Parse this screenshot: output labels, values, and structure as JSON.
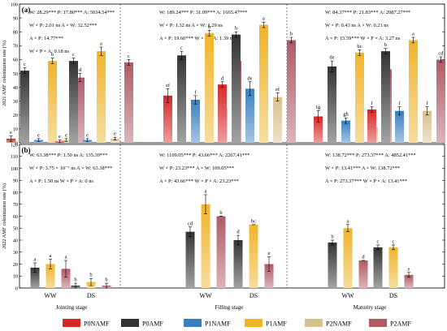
{
  "legend": [
    {
      "label": "P0NAMF",
      "color": "#d62728"
    },
    {
      "label": "P0AMF",
      "color": "#333333"
    },
    {
      "label": "P1NAMF",
      "color": "#3a7fc0"
    },
    {
      "label": "P1AMF",
      "color": "#f0b429"
    },
    {
      "label": "P2NAMF",
      "color": "#d8c18f"
    },
    {
      "label": "P2AMF",
      "color": "#b05a66"
    }
  ],
  "stages": [
    "Jointing stage",
    "Filling stage",
    "Maturity stage"
  ],
  "groups": [
    "WW",
    "DS"
  ],
  "chart_data": [
    {
      "type": "bar",
      "panel_label": "(a)",
      "ylabel": "2021 AMF colonization rate (%)",
      "ylim": [
        0,
        100
      ],
      "yticks": [
        0,
        10,
        20,
        30,
        40,
        50,
        60,
        70,
        80,
        90,
        100
      ],
      "stats": [
        [
          "W: 28.29*** P: 17.80*** A: 5034.54***",
          "W × P: 2.01 ns   A × W: 32.52***",
          "A × P: 14.77***",
          "W × P × A: 0.18 ns"
        ],
        [
          "W: 189.24*** P: 31.09*** A: 1665.47***",
          "W × P: 1.32 ns   A × W: 1.29 ns",
          "A × P: 19.60***   W × P × A: 1.39 ns"
        ],
        [
          "W: 84.37*** P: 21.83*** A: 2087.27***",
          "W × P: 0.43 ns   A × W: 0.21 ns",
          "A × P: 15.59***   W × P × A: 3.27 ns"
        ]
      ],
      "series": [
        {
          "name": "P0NAMF",
          "values": [
            [
              3,
              1
            ],
            [
              34,
              42
            ],
            [
              19,
              24
            ]
          ],
          "errors": [
            [
              2,
              1
            ],
            [
              5,
              2
            ],
            [
              4,
              2
            ]
          ],
          "letters": [
            [
              "e",
              "e"
            ],
            [
              "ef",
              "d"
            ],
            [
              "fg",
              "f"
            ]
          ]
        },
        {
          "name": "P0AMF",
          "values": [
            [
              52,
              59
            ],
            [
              63,
              78
            ],
            [
              55,
              66
            ]
          ],
          "errors": [
            [
              2,
              2
            ],
            [
              3,
              2
            ],
            [
              4,
              2
            ]
          ],
          "letters": [
            [
              "c",
              "c"
            ],
            [
              "c",
              "b"
            ],
            [
              "de",
              "b"
            ]
          ]
        },
        {
          "name": "P1NAMF",
          "values": [
            [
              2,
              2
            ],
            [
              31,
              39
            ],
            [
              16,
              23
            ]
          ],
          "errors": [
            [
              1,
              1
            ],
            [
              3,
              5
            ],
            [
              2,
              3
            ]
          ],
          "letters": [
            [
              "e",
              "e"
            ],
            [
              "f",
              "de"
            ],
            [
              "gh",
              "f"
            ]
          ]
        },
        {
          "name": "P1AMF",
          "values": [
            [
              59,
              66
            ],
            [
              79,
              85
            ],
            [
              65,
              74
            ]
          ],
          "errors": [
            [
              2,
              3
            ],
            [
              2,
              2
            ],
            [
              2,
              2
            ]
          ],
          "letters": [
            [
              "b",
              "a"
            ],
            [
              "b",
              "a"
            ],
            [
              "bc",
              "a"
            ]
          ]
        },
        {
          "name": "P2NAMF",
          "values": [
            [
              2,
              3
            ],
            [
              25,
              33
            ],
            [
              11,
              23
            ]
          ],
          "errors": [
            [
              1,
              1
            ],
            [
              2,
              3
            ],
            [
              2,
              3
            ]
          ],
          "letters": [
            [
              "e",
              "e"
            ],
            [
              "g",
              "ef"
            ],
            [
              "h",
              "f"
            ]
          ]
        },
        {
          "name": "P2AMF",
          "values": [
            [
              47,
              58
            ],
            [
              59,
              74
            ],
            [
              53,
              60
            ]
          ],
          "errors": [
            [
              3,
              2
            ],
            [
              2,
              2
            ],
            [
              3,
              2
            ]
          ],
          "letters": [
            [
              "d",
              "c"
            ],
            [
              "c",
              "b"
            ],
            [
              "d",
              "cd"
            ]
          ]
        }
      ]
    },
    {
      "type": "bar",
      "panel_label": "(b)",
      "ylabel": "2022 AMF colonization rate (%)",
      "ylim": [
        0,
        120
      ],
      "yticks": [
        0,
        10,
        20,
        30,
        40,
        50,
        60,
        70,
        80,
        90,
        100,
        110,
        120
      ],
      "stats": [
        [
          "W: 63.38*** P: 1.50 ns A: 135.39***",
          "W × P: 3.75 × 10⁻⁷ ns  A × W: 63.38***",
          "A × P: 1.50 ns   W × P × A: 0 ns"
        ],
        [
          "W: 1109.05*** P: 43.66*** A: 2267.41***",
          "W × P: 23.23***   A × W: 109.05***",
          "A × P: 43.66***   W × P × A: 23.23***"
        ],
        [
          "W: 138.72*** P: 273.37*** A: 4852.41***",
          "W × P: 13.41***   A × W: 138.72***",
          "A × P: 273.37***   W × P × A: 13.41***"
        ]
      ],
      "series": [
        {
          "name": "P0AMF",
          "values": [
            [
              17,
              2
            ],
            [
              47,
              40
            ],
            [
              38,
              34
            ]
          ],
          "errors": [
            [
              4,
              2
            ],
            [
              4,
              4
            ],
            [
              2,
              2
            ]
          ],
          "letters": [
            [
              "a",
              "b"
            ],
            [
              "cd",
              "d"
            ],
            [
              "b",
              "c"
            ]
          ]
        },
        {
          "name": "P1AMF",
          "values": [
            [
              20,
              5
            ],
            [
              70,
              53
            ],
            [
              50,
              34
            ]
          ],
          "errors": [
            [
              4,
              3
            ],
            [
              8,
              0
            ],
            [
              3,
              2
            ]
          ],
          "letters": [
            [
              "a",
              "b"
            ],
            [
              "a",
              "bc"
            ],
            [
              "a",
              "c"
            ]
          ]
        },
        {
          "name": "P2AMF",
          "values": [
            [
              16,
              2
            ],
            [
              60,
              20
            ],
            [
              23,
              11
            ]
          ],
          "errors": [
            [
              7,
              2
            ],
            [
              0,
              6
            ],
            [
              0,
              2
            ]
          ],
          "letters": [
            [
              "a",
              "b"
            ],
            [
              "b",
              "e"
            ],
            [
              "d",
              "e"
            ]
          ]
        }
      ]
    }
  ]
}
